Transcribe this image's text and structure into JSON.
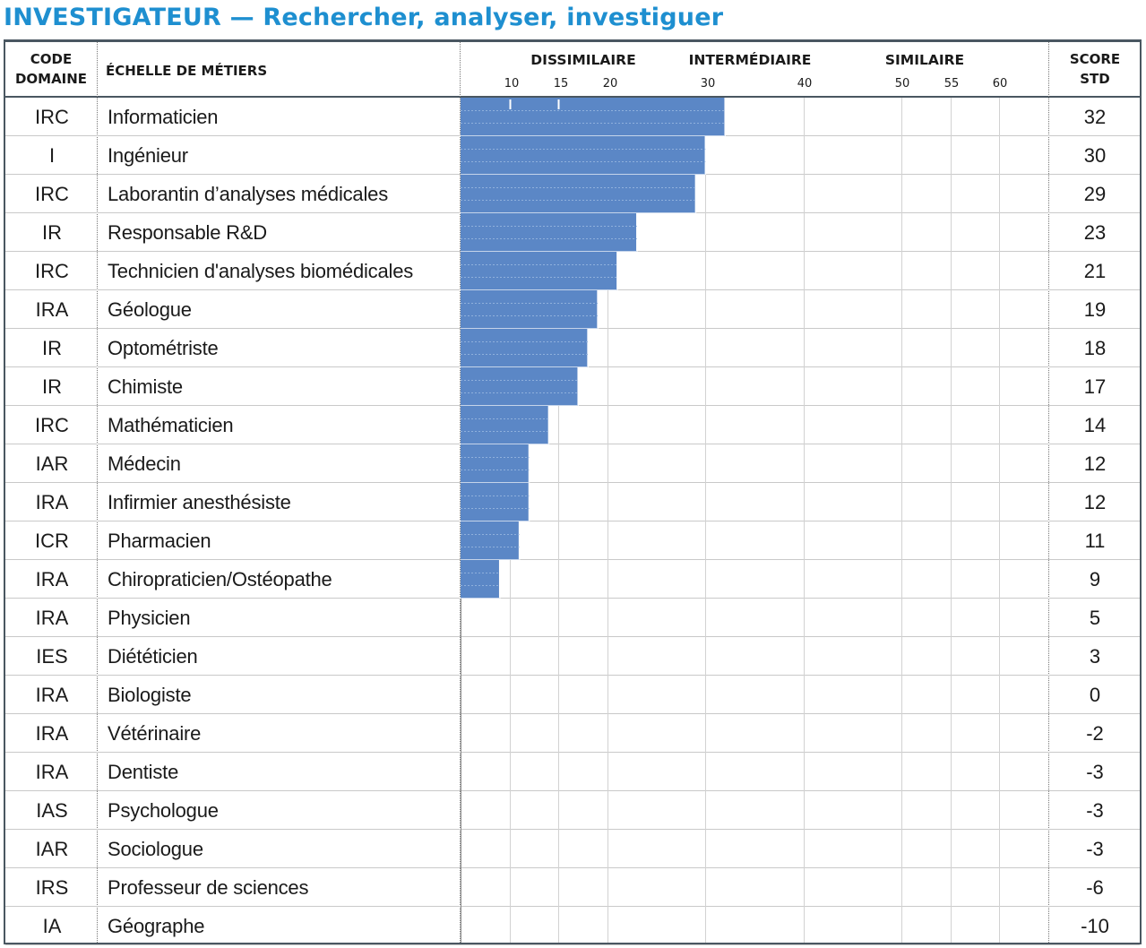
{
  "title": "INVESTIGATEUR — Rechercher, analyser, investiguer",
  "header": {
    "code_line1": "CODE",
    "code_line2": "DOMAINE",
    "scale": "ÉCHELLE DE MÉTIERS",
    "score_line1": "SCORE",
    "score_line2": "STD",
    "bands": [
      "DISSIMILAIRE",
      "INTERMÉDIAIRE",
      "SIMILAIRE"
    ],
    "ticks": [
      "10",
      "15",
      "20",
      "30",
      "40",
      "50",
      "55",
      "60"
    ]
  },
  "colors": {
    "title": "#1e8fd0",
    "bar": "#5b87c6",
    "rule": "#4a5761"
  },
  "chart_data": {
    "type": "bar",
    "orientation": "horizontal",
    "xlim": [
      5,
      65
    ],
    "tick_values": [
      10,
      15,
      20,
      30,
      40,
      50,
      55,
      60
    ],
    "categories": [
      "Informaticien",
      "Ingénieur",
      "Laborantin d’analyses médicales",
      "Responsable R&D",
      "Technicien d'analyses biomédicales",
      "Géologue",
      "Optométriste",
      "Chimiste",
      "Mathématicien",
      "Médecin",
      "Infirmier anesthésiste",
      "Pharmacien",
      "Chiropraticien/Ostéopathe",
      "Physicien",
      "Diététicien",
      "Biologiste",
      "Vétérinaire",
      "Dentiste",
      "Psychologue",
      "Sociologue",
      "Professeur de sciences",
      "Géographe"
    ],
    "codes": [
      "IRC",
      "I",
      "IRC",
      "IR",
      "IRC",
      "IRA",
      "IR",
      "IR",
      "IRC",
      "IAR",
      "IRA",
      "ICR",
      "IRA",
      "IRA",
      "IES",
      "IRA",
      "IRA",
      "IRA",
      "IAS",
      "IAR",
      "IRS",
      "IA"
    ],
    "values": [
      32,
      30,
      29,
      23,
      21,
      19,
      18,
      17,
      14,
      12,
      12,
      11,
      9,
      5,
      3,
      0,
      -2,
      -3,
      -3,
      -3,
      -6,
      -10
    ],
    "value_labels": [
      "32",
      "30",
      "29",
      "23",
      "21",
      "19",
      "18",
      "17",
      "14",
      "12",
      "12",
      "11",
      "9",
      "5",
      "3",
      "0",
      "-2",
      "-3",
      "-3",
      "-3",
      "-6",
      "-10"
    ]
  }
}
